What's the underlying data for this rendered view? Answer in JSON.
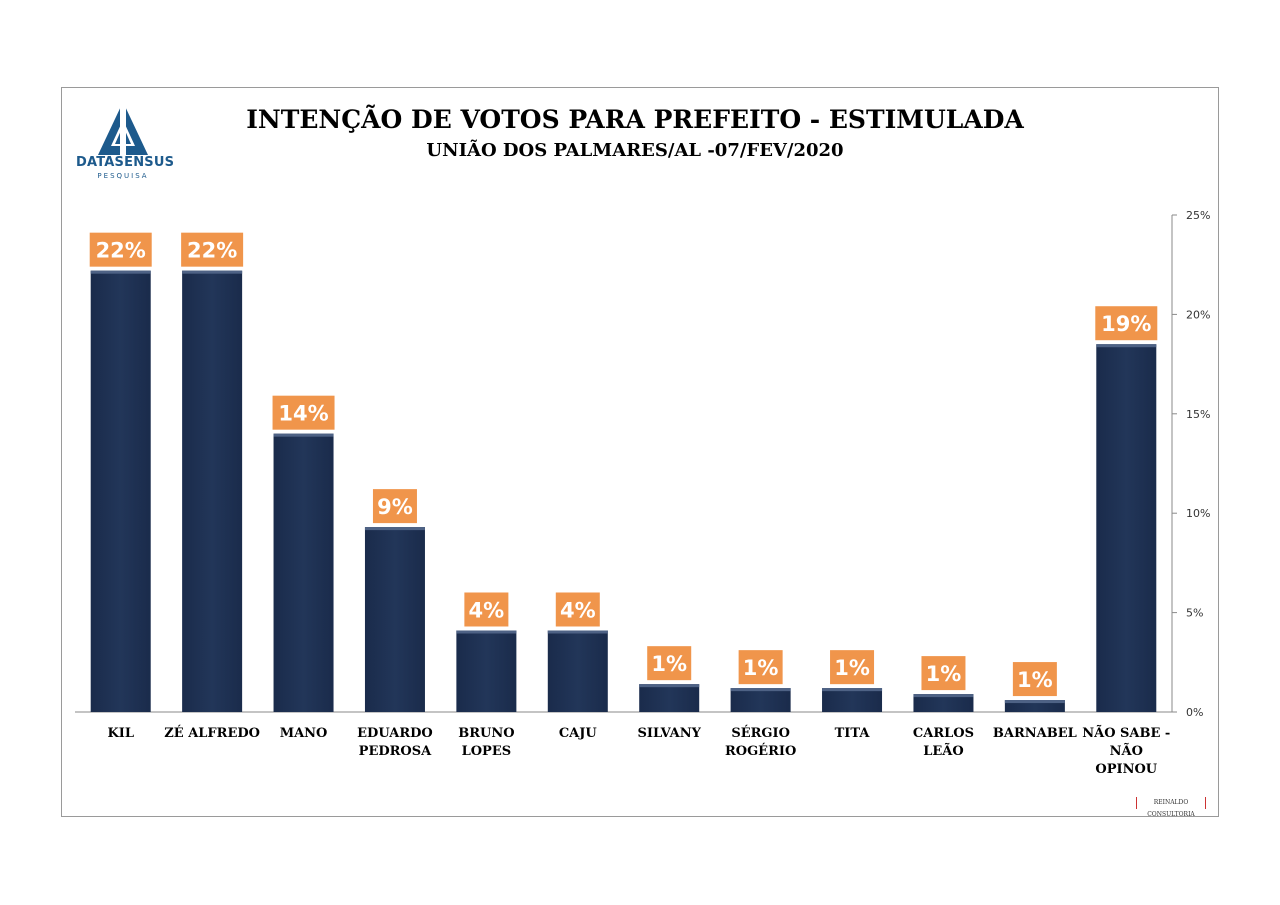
{
  "header": {
    "brand": "DATASENSUS",
    "brand_sub": "PESQUISA",
    "footer_brand": "REINALDO CONSULTORIA"
  },
  "chart_data": {
    "type": "bar",
    "title": "INTENÇÃO DE VOTOS PARA PREFEITO - ESTIMULADA",
    "subtitle": "UNIÃO DOS PALMARES/AL -07/FEV/2020",
    "categories": [
      [
        "KIL"
      ],
      [
        "ZÉ ALFREDO"
      ],
      [
        "MANO"
      ],
      [
        "EDUARDO",
        "PEDROSA"
      ],
      [
        "BRUNO",
        "LOPES"
      ],
      [
        "CAJU"
      ],
      [
        "SILVANY"
      ],
      [
        "SÉRGIO",
        "ROGÉRIO"
      ],
      [
        "TITA"
      ],
      [
        "CARLOS",
        "LEÃO"
      ],
      [
        "BARNABEL"
      ],
      [
        "NÃO SABE -",
        "NÃO",
        "OPINOU"
      ]
    ],
    "values": [
      22.2,
      22.2,
      14.0,
      9.3,
      4.1,
      4.1,
      1.4,
      1.2,
      1.2,
      0.9,
      0.6,
      18.5
    ],
    "data_labels": [
      "22%",
      "22%",
      "14%",
      "9%",
      "4%",
      "4%",
      "1%",
      "1%",
      "1%",
      "1%",
      "1%",
      "19%"
    ],
    "y_ticks": [
      "0%",
      "5%",
      "10%",
      "15%",
      "20%",
      "25%"
    ],
    "y_tick_values": [
      0,
      5,
      10,
      15,
      20,
      25
    ],
    "ylim": [
      0,
      25
    ],
    "axis_position": "right",
    "colors": {
      "bar": "#1a2b4b",
      "bar_top": "#4e6285",
      "label_bg": "#f0954b",
      "label_text": "#ffffff",
      "axis": "#8a8a8a"
    }
  }
}
